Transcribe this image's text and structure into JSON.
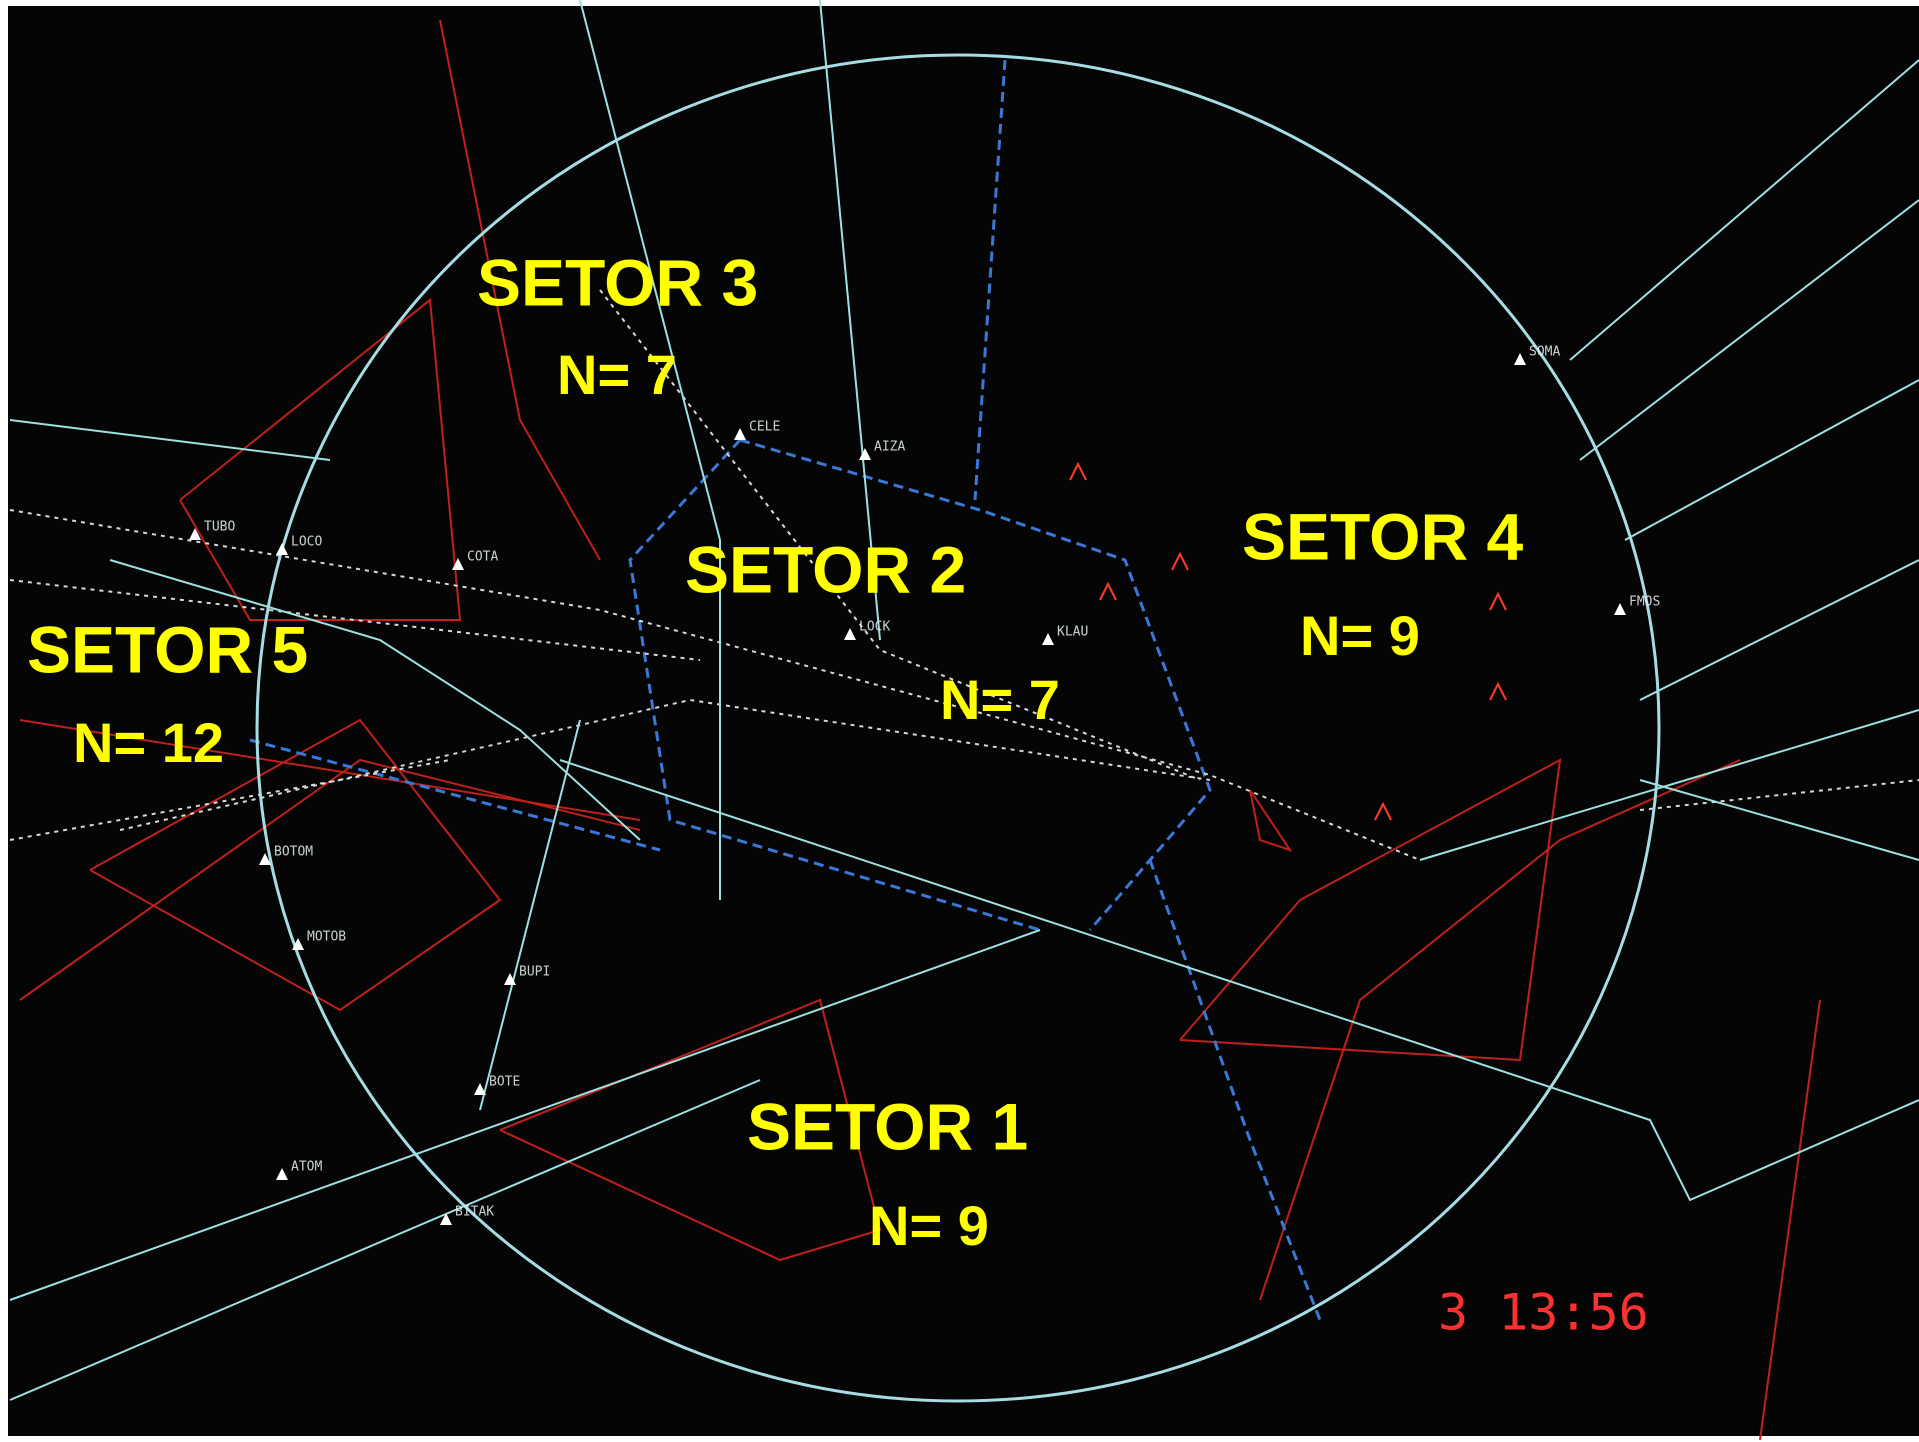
{
  "sectors": [
    {
      "name": "SETOR 3",
      "count": "N= 7"
    },
    {
      "name": "SETOR 2",
      "count": "N= 7"
    },
    {
      "name": "SETOR 4",
      "count": "N= 9"
    },
    {
      "name": "SETOR 5",
      "count": "N= 12"
    },
    {
      "name": "SETOR 1",
      "count": "N= 9"
    }
  ],
  "waypoints": [
    "CELE",
    "AIZA",
    "LOCK",
    "KLAU",
    "COTA",
    "LOCO",
    "TUBO",
    "BOTOM",
    "MOTOB",
    "BUPI",
    "BOTE",
    "ATOM",
    "BITAK",
    "SOMA",
    "FMOS"
  ],
  "timestamp": "3 13:56"
}
